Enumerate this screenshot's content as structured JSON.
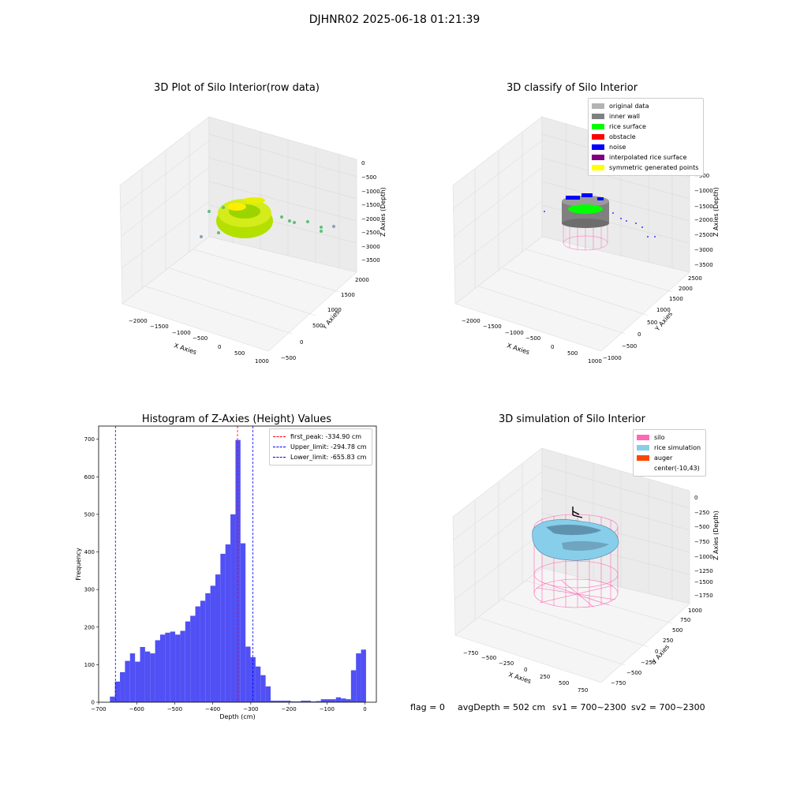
{
  "suptitle": "DJHNR02 2025-06-18 01:21:39",
  "plots": {
    "raw": {
      "title": "3D Plot of Silo Interior(row data)",
      "xlabel": "X Axies",
      "ylabel": "Y Axies",
      "zlabel": "Z Axies (Depth)",
      "xticks": [
        "−2000",
        "−1500",
        "−1000",
        "−500",
        "0",
        "500",
        "1000"
      ],
      "yticks": [
        "−500",
        "0",
        "500",
        "1000",
        "1500",
        "2000"
      ],
      "zticks": [
        "0",
        "−500",
        "−1000",
        "−1500",
        "−2000",
        "−2500",
        "−3000",
        "−3500"
      ]
    },
    "classify": {
      "title": "3D classify of Silo Interior",
      "xlabel": "X Axies",
      "ylabel": "Y Axies",
      "zlabel": "Z Axies (Depth)",
      "xticks": [
        "−2000",
        "−1500",
        "−1000",
        "−500",
        "0",
        "500",
        "1000"
      ],
      "yticks": [
        "−1000",
        "−500",
        "0",
        "500",
        "1000",
        "1500",
        "2000",
        "2500"
      ],
      "zticks": [
        "0",
        "−500",
        "−1000",
        "−1500",
        "−2000",
        "−2500",
        "−3000",
        "−3500"
      ],
      "legend": [
        {
          "label": "original data",
          "color": "#b3b3b3"
        },
        {
          "label": "inner wall",
          "color": "#808080"
        },
        {
          "label": "rice surface",
          "color": "#00ff00"
        },
        {
          "label": "obstacle",
          "color": "#ff0000"
        },
        {
          "label": "noise",
          "color": "#0000ff"
        },
        {
          "label": "interpolated rice surface",
          "color": "#800080"
        },
        {
          "label": "symmetric generated points",
          "color": "#ffff00"
        }
      ]
    },
    "simulation": {
      "title": "3D simulation of Silo Interior",
      "xlabel": "X Axies",
      "ylabel": "Y Axies",
      "zlabel": "Z Axies (Depth)",
      "xticks": [
        "−750",
        "−500",
        "−250",
        "0",
        "250",
        "500",
        "750"
      ],
      "yticks": [
        "−750",
        "−500",
        "−250",
        "0",
        "250",
        "500",
        "750",
        "1000"
      ],
      "zticks": [
        "0",
        "−250",
        "−500",
        "−750",
        "−1000",
        "−1250",
        "−1500",
        "−1750"
      ],
      "legend": [
        {
          "label": "silo",
          "color": "#ff69b4"
        },
        {
          "label": "rice simulation",
          "color": "#87ceeb"
        },
        {
          "label": "auger",
          "color": "#ff4500"
        },
        {
          "label": "center(-10,43)",
          "color": "#ffffff"
        }
      ]
    }
  },
  "footer": {
    "flag": "flag = 0",
    "avg": "avgDepth = 502 cm",
    "sv1": "sv1 = 700~2300",
    "sv2": "sv2 = 700~2300"
  },
  "chart_data": {
    "type": "bar",
    "title": "Histogram of Z-Axies (Height) Values",
    "xlabel": "Depth (cm)",
    "ylabel": "Frequency",
    "xlim": [
      -700,
      30
    ],
    "ylim": [
      0,
      735
    ],
    "xticks": [
      -700,
      -600,
      -500,
      -400,
      -300,
      -200,
      -100,
      0
    ],
    "yticks": [
      0,
      100,
      200,
      300,
      400,
      500,
      600,
      700
    ],
    "bar_color": "#5050f5",
    "bin_width": 13.2,
    "bins_start": [
      -670.3,
      -657.1,
      -643.9,
      -630.7,
      -617.5,
      -604.3,
      -591.1,
      -577.9,
      -564.7,
      -551.5,
      -538.3,
      -525.1,
      -511.9,
      -498.7,
      -485.5,
      -472.3,
      -459.1,
      -445.9,
      -432.7,
      -419.5,
      -406.3,
      -393.1,
      -379.9,
      -366.7,
      -353.5,
      -340.3,
      -327.1,
      -313.9,
      -300.7,
      -287.5,
      -274.3,
      -261.1,
      -247.9,
      -234.7,
      -221.5,
      -208.3,
      -195.1,
      -181.9,
      -168.7,
      -155.5,
      -142.3,
      -129.1,
      -115.9,
      -102.7,
      -89.5,
      -76.3,
      -63.1,
      -49.9,
      -36.7,
      -23.5,
      -10.3
    ],
    "counts": [
      15,
      55,
      80,
      110,
      130,
      108,
      147,
      135,
      130,
      165,
      180,
      185,
      188,
      180,
      190,
      215,
      230,
      255,
      270,
      290,
      310,
      340,
      395,
      420,
      500,
      698,
      423,
      148,
      120,
      95,
      72,
      42,
      4,
      4,
      4,
      4,
      2,
      2,
      4,
      4,
      2,
      3,
      8,
      8,
      8,
      13,
      10,
      8,
      85,
      130,
      140
    ],
    "lines": [
      {
        "label": "first_peak: -334.90 cm",
        "x": -334.9,
        "color": "#ff0000"
      },
      {
        "label": "Upper_limit: -294.78 cm",
        "x": -294.78,
        "color": "#0000ff"
      },
      {
        "label": "Lower_limit: -655.83 cm",
        "x": -655.83,
        "color": "#0000ff"
      }
    ]
  }
}
